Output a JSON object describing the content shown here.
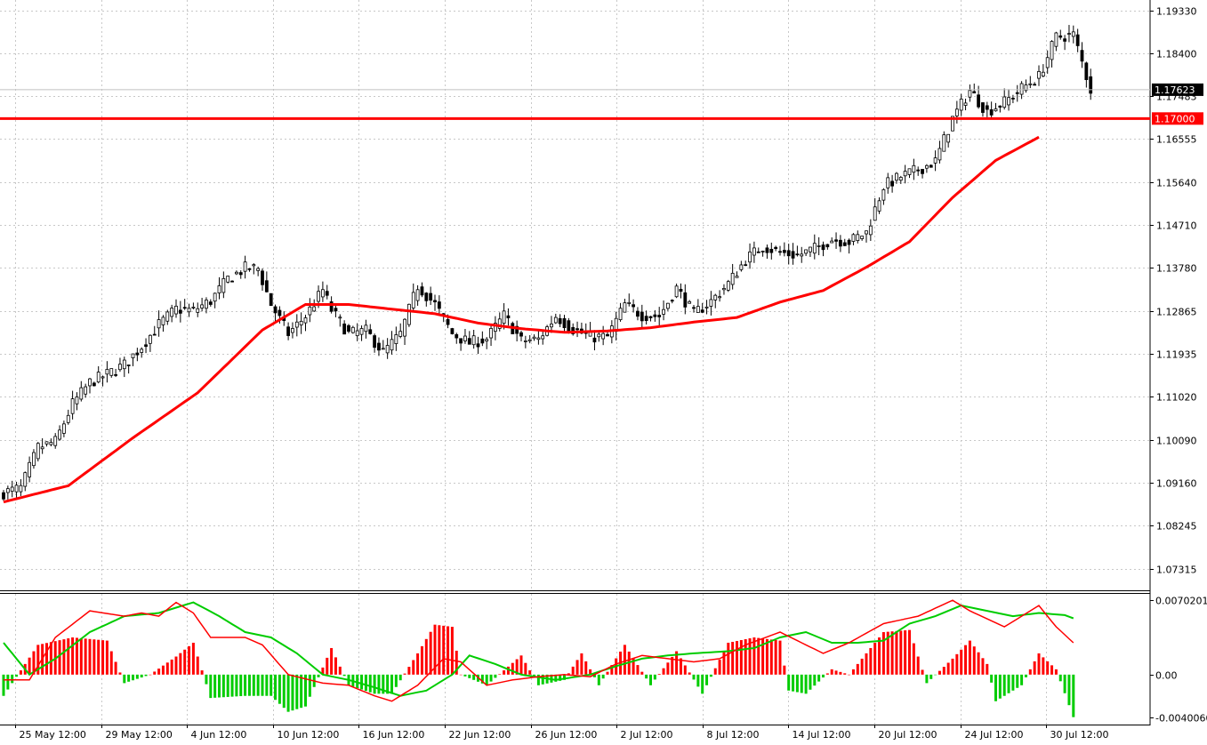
{
  "chart_data": [
    {
      "type": "candlestick",
      "title": "",
      "ylim": [
        1.0685,
        1.1955
      ],
      "y_ticks": [
        "1.19330",
        "1.18400",
        "1.17483",
        "1.16555",
        "1.15640",
        "1.14710",
        "1.13780",
        "1.12865",
        "1.11935",
        "1.11020",
        "1.10090",
        "1.09160",
        "1.08245",
        "1.07315"
      ],
      "x_ticks": [
        "25 May 12:00",
        "29 May 12:00",
        "4 Jun 12:00",
        "10 Jun 12:00",
        "16 Jun 12:00",
        "22 Jun 12:00",
        "26 Jun 12:00",
        "2 Jul 12:00",
        "8 Jul 12:00",
        "14 Jul 12:00",
        "20 Jul 12:00",
        "24 Jul 12:00",
        "30 Jul 12:00"
      ],
      "current_price": "1.17623",
      "level": {
        "value": 1.17,
        "label": "1.17000",
        "color": "#ff0000"
      },
      "grid": true,
      "price_path": [
        [
          0,
          1.0895
        ],
        [
          4,
          1.0905
        ],
        [
          8,
          1.0992
        ],
        [
          12,
          1.1005
        ],
        [
          16,
          1.1086
        ],
        [
          20,
          1.1132
        ],
        [
          24,
          1.115
        ],
        [
          28,
          1.117
        ],
        [
          32,
          1.121
        ],
        [
          36,
          1.1257
        ],
        [
          40,
          1.129
        ],
        [
          44,
          1.1287
        ],
        [
          48,
          1.1308
        ],
        [
          52,
          1.1355
        ],
        [
          56,
          1.1378
        ],
        [
          59,
          1.1377
        ],
        [
          62,
          1.13
        ],
        [
          66,
          1.1237
        ],
        [
          70,
          1.1275
        ],
        [
          74,
          1.1331
        ],
        [
          76,
          1.1288
        ],
        [
          80,
          1.1237
        ],
        [
          84,
          1.1243
        ],
        [
          88,
          1.1197
        ],
        [
          92,
          1.1236
        ],
        [
          96,
          1.134
        ],
        [
          100,
          1.13
        ],
        [
          104,
          1.1237
        ],
        [
          108,
          1.1217
        ],
        [
          112,
          1.1226
        ],
        [
          116,
          1.1276
        ],
        [
          120,
          1.1222
        ],
        [
          124,
          1.1225
        ],
        [
          128,
          1.1275
        ],
        [
          132,
          1.1247
        ],
        [
          136,
          1.123
        ],
        [
          140,
          1.123
        ],
        [
          144,
          1.13
        ],
        [
          148,
          1.1277
        ],
        [
          152,
          1.1275
        ],
        [
          156,
          1.1335
        ],
        [
          160,
          1.128
        ],
        [
          164,
          1.1307
        ],
        [
          168,
          1.1345
        ],
        [
          172,
          1.1397
        ],
        [
          176,
          1.1425
        ],
        [
          180,
          1.1412
        ],
        [
          184,
          1.1405
        ],
        [
          188,
          1.142
        ],
        [
          192,
          1.144
        ],
        [
          196,
          1.1435
        ],
        [
          200,
          1.1455
        ],
        [
          204,
          1.1555
        ],
        [
          208,
          1.1575
        ],
        [
          212,
          1.159
        ],
        [
          216,
          1.1608
        ],
        [
          220,
          1.17
        ],
        [
          224,
          1.176
        ],
        [
          228,
          1.1715
        ],
        [
          232,
          1.1735
        ],
        [
          236,
          1.1765
        ],
        [
          240,
          1.179
        ],
        [
          244,
          1.1875
        ],
        [
          248,
          1.188
        ],
        [
          252,
          1.1762
        ]
      ],
      "ma_path": [
        [
          0,
          1.0875
        ],
        [
          15,
          1.091
        ],
        [
          30,
          1.1013
        ],
        [
          45,
          1.111
        ],
        [
          60,
          1.1245
        ],
        [
          70,
          1.13
        ],
        [
          80,
          1.13
        ],
        [
          90,
          1.129
        ],
        [
          100,
          1.128
        ],
        [
          110,
          1.126
        ],
        [
          120,
          1.1248
        ],
        [
          130,
          1.124
        ],
        [
          140,
          1.1243
        ],
        [
          150,
          1.125
        ],
        [
          160,
          1.1262
        ],
        [
          170,
          1.1272
        ],
        [
          180,
          1.1305
        ],
        [
          190,
          1.133
        ],
        [
          200,
          1.138
        ],
        [
          210,
          1.1435
        ],
        [
          220,
          1.153
        ],
        [
          230,
          1.161
        ],
        [
          240,
          1.166
        ]
      ],
      "ma_color": "#ff0000",
      "bull_color": "#ffffff",
      "bear_color": "#000000"
    },
    {
      "type": "histogram",
      "title": "",
      "ylim": [
        -0.0047,
        0.0076
      ],
      "y_ticks": [
        "0.0070201",
        "0.00",
        "-0.0040060"
      ],
      "bars_anchor": [
        [
          0,
          -0.002
        ],
        [
          8,
          0.0028
        ],
        [
          16,
          0.0035
        ],
        [
          24,
          0.0032
        ],
        [
          28,
          -0.0008
        ],
        [
          34,
          0.0
        ],
        [
          40,
          0.0017
        ],
        [
          44,
          0.003
        ],
        [
          48,
          -0.0022
        ],
        [
          56,
          -0.002
        ],
        [
          62,
          -0.002
        ],
        [
          66,
          -0.0035
        ],
        [
          70,
          -0.003
        ],
        [
          76,
          0.0025
        ],
        [
          80,
          -0.001
        ],
        [
          86,
          -0.0018
        ],
        [
          90,
          -0.0018
        ],
        [
          96,
          0.002
        ],
        [
          100,
          0.0047
        ],
        [
          104,
          0.0045
        ],
        [
          106,
          0.0
        ],
        [
          112,
          -0.001
        ],
        [
          120,
          0.0018
        ],
        [
          124,
          -0.001
        ],
        [
          130,
          -0.0005
        ],
        [
          134,
          0.002
        ],
        [
          138,
          -0.001
        ],
        [
          144,
          0.0028
        ],
        [
          150,
          -0.001
        ],
        [
          156,
          0.0022
        ],
        [
          162,
          -0.0018
        ],
        [
          168,
          0.003
        ],
        [
          174,
          0.0035
        ],
        [
          180,
          0.0032
        ],
        [
          182,
          -0.0015
        ],
        [
          186,
          -0.0018
        ],
        [
          192,
          0.0005
        ],
        [
          196,
          0.0
        ],
        [
          204,
          0.004
        ],
        [
          210,
          0.0042
        ],
        [
          214,
          -0.0008
        ],
        [
          220,
          0.0015
        ],
        [
          224,
          0.0032
        ],
        [
          228,
          0.001
        ],
        [
          230,
          -0.0025
        ],
        [
          236,
          -0.001
        ],
        [
          240,
          0.002
        ],
        [
          244,
          0.0005
        ],
        [
          248,
          -0.004
        ]
      ],
      "red_line": [
        [
          0,
          -0.0005
        ],
        [
          6,
          -0.0005
        ],
        [
          12,
          0.0035
        ],
        [
          20,
          0.006
        ],
        [
          28,
          0.0055
        ],
        [
          32,
          0.0058
        ],
        [
          36,
          0.0055
        ],
        [
          40,
          0.0068
        ],
        [
          44,
          0.0058
        ],
        [
          48,
          0.0035
        ],
        [
          56,
          0.0035
        ],
        [
          60,
          0.0028
        ],
        [
          66,
          0.0
        ],
        [
          74,
          -0.0008
        ],
        [
          80,
          -0.001
        ],
        [
          86,
          -0.002
        ],
        [
          90,
          -0.0025
        ],
        [
          96,
          -0.001
        ],
        [
          102,
          0.0015
        ],
        [
          106,
          0.0012
        ],
        [
          112,
          -0.001
        ],
        [
          118,
          -0.0005
        ],
        [
          124,
          -0.0002
        ],
        [
          130,
          0.0
        ],
        [
          136,
          -0.0002
        ],
        [
          142,
          0.001
        ],
        [
          148,
          0.0018
        ],
        [
          154,
          0.0015
        ],
        [
          160,
          0.0012
        ],
        [
          166,
          0.0015
        ],
        [
          172,
          0.0028
        ],
        [
          180,
          0.004
        ],
        [
          186,
          0.0028
        ],
        [
          190,
          0.002
        ],
        [
          196,
          0.003
        ],
        [
          204,
          0.0048
        ],
        [
          212,
          0.0055
        ],
        [
          220,
          0.007
        ],
        [
          224,
          0.006
        ],
        [
          232,
          0.0045
        ],
        [
          236,
          0.0055
        ],
        [
          240,
          0.0065
        ],
        [
          244,
          0.0045
        ],
        [
          248,
          0.003
        ]
      ],
      "green_line": [
        [
          0,
          0.003
        ],
        [
          6,
          0.0
        ],
        [
          12,
          0.0015
        ],
        [
          20,
          0.004
        ],
        [
          28,
          0.0055
        ],
        [
          36,
          0.0058
        ],
        [
          44,
          0.0068
        ],
        [
          50,
          0.0055
        ],
        [
          56,
          0.004
        ],
        [
          62,
          0.0035
        ],
        [
          68,
          0.002
        ],
        [
          74,
          0.0
        ],
        [
          80,
          -0.0005
        ],
        [
          86,
          -0.0012
        ],
        [
          92,
          -0.002
        ],
        [
          98,
          -0.0015
        ],
        [
          104,
          0.0
        ],
        [
          108,
          0.0018
        ],
        [
          114,
          0.001
        ],
        [
          120,
          0.0
        ],
        [
          128,
          -0.0005
        ],
        [
          136,
          0.0
        ],
        [
          142,
          0.0008
        ],
        [
          148,
          0.0015
        ],
        [
          154,
          0.0018
        ],
        [
          160,
          0.002
        ],
        [
          168,
          0.0022
        ],
        [
          174,
          0.0025
        ],
        [
          180,
          0.0035
        ],
        [
          186,
          0.004
        ],
        [
          192,
          0.003
        ],
        [
          198,
          0.003
        ],
        [
          204,
          0.0032
        ],
        [
          210,
          0.0048
        ],
        [
          216,
          0.0055
        ],
        [
          222,
          0.0065
        ],
        [
          228,
          0.006
        ],
        [
          234,
          0.0055
        ],
        [
          240,
          0.0058
        ],
        [
          246,
          0.0056
        ],
        [
          248,
          0.0053
        ]
      ],
      "red_color": "#ff0000",
      "green_color": "#00cc00"
    }
  ]
}
